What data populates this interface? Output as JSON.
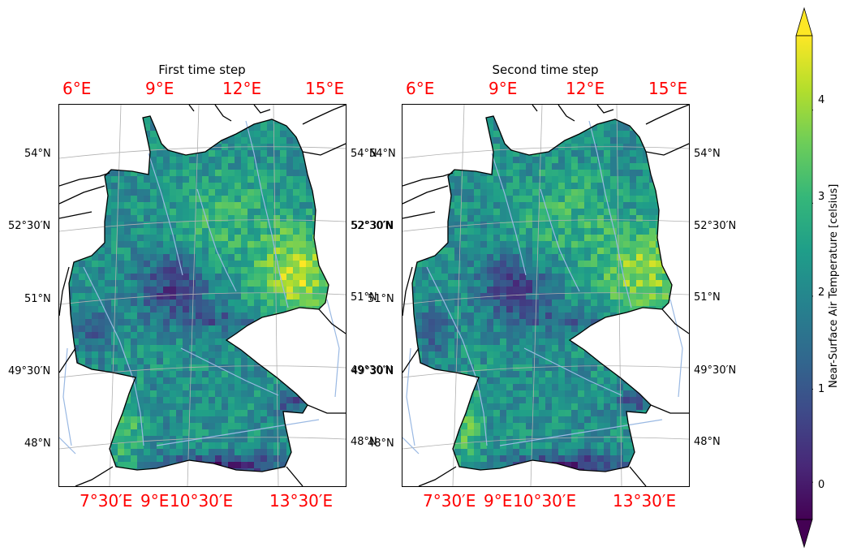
{
  "panels": [
    {
      "title": "First time step",
      "top_lon_labels": [
        "6°E",
        "9°E",
        "12°E",
        "15°E"
      ],
      "bottom_lon_labels": [
        "7°30′E",
        "9°E",
        "10°30′E",
        "13°30′E"
      ],
      "left_lat_labels": [
        "54°N",
        "52°30′N",
        "51°N",
        "49°30′N",
        "48°N"
      ],
      "right_lat_labels": [
        "54°N",
        "52°30′N",
        "51°N",
        "49°30′N",
        "48°N"
      ],
      "hotspot_strength": 1.0
    },
    {
      "title": "Second time step",
      "top_lon_labels": [
        "6°E",
        "9°E",
        "12°E",
        "15°E"
      ],
      "bottom_lon_labels": [
        "7°30′E",
        "9°E",
        "10°30′E",
        "13°30′E"
      ],
      "left_lat_labels": [
        "54°N",
        "52°30′N",
        "51°N",
        "49°30′N",
        "48°N"
      ],
      "right_lat_labels": [
        "54°N",
        "52°30′N",
        "51°N",
        "49°30′N",
        "48°N"
      ],
      "hotspot_strength": 0.85
    }
  ],
  "colorbar": {
    "label": "Near-Surface Air Temperature [celsius]",
    "ticks": [
      "0",
      "1",
      "2",
      "3",
      "4"
    ],
    "tick_values": [
      0,
      1,
      2,
      3,
      4
    ],
    "min": -0.4,
    "max": 4.8,
    "extend": "both",
    "colormap": "viridis"
  },
  "colors": {
    "lon_label": "#ff0000",
    "gridline": "#b0b0b0",
    "river": "#9ab9e3",
    "coast": "#000000"
  }
}
